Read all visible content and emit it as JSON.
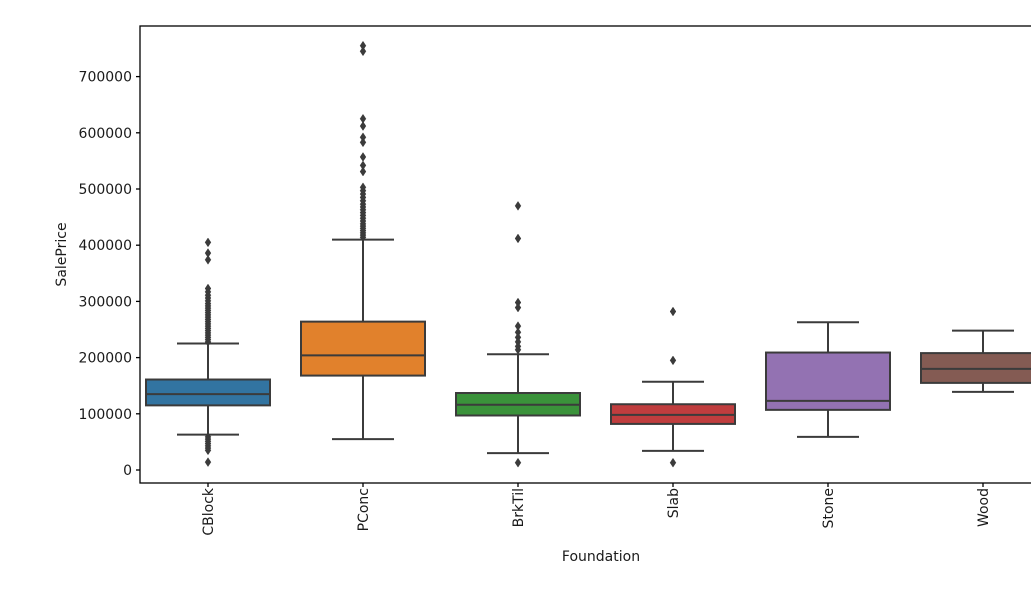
{
  "chart_data": {
    "type": "boxplot",
    "title": "",
    "xlabel": "Foundation",
    "ylabel": "SalePrice",
    "categories": [
      "CBlock",
      "PConc",
      "BrkTil",
      "Slab",
      "Stone",
      "Wood"
    ],
    "ylim": [
      0,
      790000
    ],
    "yticks": [
      0,
      100000,
      200000,
      300000,
      400000,
      500000,
      600000,
      700000
    ],
    "ytick_labels": [
      "0",
      "100000",
      "200000",
      "300000",
      "400000",
      "500000",
      "600000",
      "700000"
    ],
    "grid": false,
    "legend": null,
    "palette": [
      "#3274a1",
      "#e1812c",
      "#3a923a",
      "#c03d3e",
      "#9372b2",
      "#845b53"
    ],
    "line_color": "#3b3b3b",
    "series": [
      {
        "name": "CBlock",
        "whisker_low": 63000,
        "q1": 115000,
        "median": 135000,
        "q3": 161000,
        "whisker_high": 225000,
        "outliers_high": [
          405000,
          386000,
          374000,
          323000,
          317000,
          311000,
          306000,
          301000,
          296000,
          292000,
          288000,
          284000,
          280000,
          276000,
          272000,
          268000,
          264000,
          260000,
          256000,
          252000,
          248000,
          244000,
          240000,
          236000,
          232000,
          228000
        ],
        "outliers_low": [
          59000,
          55000,
          51000,
          47000,
          43000,
          39000,
          35000,
          14000
        ]
      },
      {
        "name": "PConc",
        "whisker_low": 55000,
        "q1": 168000,
        "median": 204000,
        "q3": 264000,
        "whisker_high": 410000,
        "outliers_high": [
          755000,
          745000,
          625000,
          612000,
          592000,
          583000,
          557000,
          542000,
          531000,
          503000,
          497000,
          491000,
          485000,
          479000,
          473000,
          468000,
          463000,
          458000,
          453000,
          448000,
          443000,
          438000,
          434000,
          430000,
          426000,
          422000,
          418000,
          414000
        ],
        "outliers_low": []
      },
      {
        "name": "BrkTil",
        "whisker_low": 30000,
        "q1": 97000,
        "median": 116000,
        "q3": 137000,
        "whisker_high": 206000,
        "outliers_high": [
          470000,
          412000,
          298000,
          289000,
          256000,
          245000,
          236000,
          228000,
          220000,
          214000
        ],
        "outliers_low": [
          13000
        ]
      },
      {
        "name": "Slab",
        "whisker_low": 34000,
        "q1": 82000,
        "median": 98000,
        "q3": 117000,
        "whisker_high": 157000,
        "outliers_high": [
          282000,
          195000
        ],
        "outliers_low": [
          13000
        ]
      },
      {
        "name": "Stone",
        "whisker_low": 59000,
        "q1": 107000,
        "median": 123000,
        "q3": 209000,
        "whisker_high": 263000,
        "outliers_high": [],
        "outliers_low": []
      },
      {
        "name": "Wood",
        "whisker_low": 139000,
        "q1": 155000,
        "median": 180000,
        "q3": 208000,
        "whisker_high": 248000,
        "outliers_high": [],
        "outliers_low": []
      }
    ]
  }
}
